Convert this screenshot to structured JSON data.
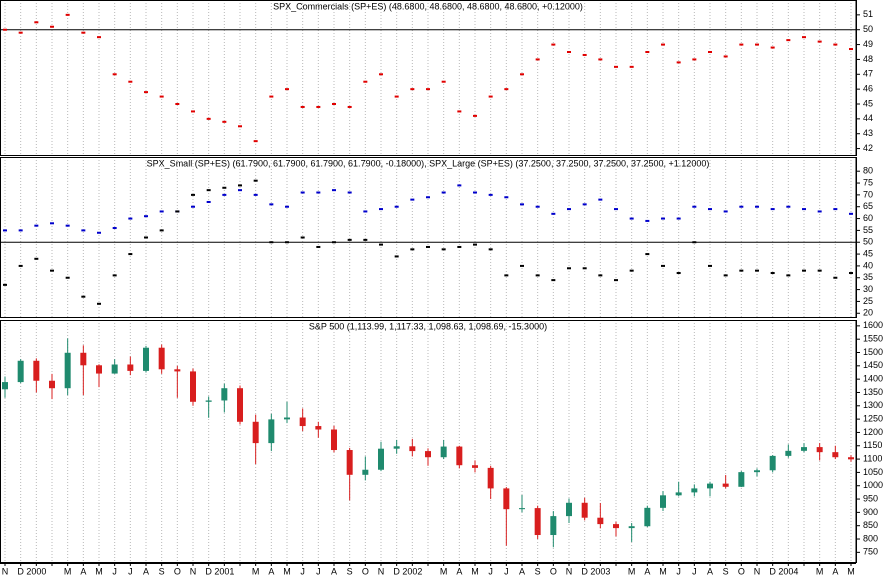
{
  "chart_data": [
    {
      "type": "dot",
      "title": "SPX_Commercials (SP+ES) (48.6800, 48.6800, 48.6800, 48.6800, +0.12000)",
      "color": "#e00000",
      "values": [
        50,
        49.8,
        50.5,
        50.2,
        51,
        49.8,
        49.5,
        47,
        46.5,
        45.8,
        45.5,
        45,
        44.5,
        44,
        43.8,
        43.5,
        42.5,
        45.5,
        46,
        44.8,
        44.8,
        45,
        44.8,
        46.5,
        47,
        45.5,
        46,
        46,
        46.5,
        44.5,
        44.2,
        45.5,
        46,
        47,
        48,
        49,
        48.5,
        48.3,
        48,
        47.5,
        47.5,
        48.5,
        49,
        47.8,
        48,
        48.5,
        48.2,
        49,
        49,
        48.8,
        49.3,
        49.5,
        49.2,
        49,
        48.7
      ],
      "hline": 50,
      "ylim": [
        41.5,
        52
      ],
      "yticks": [
        42,
        43,
        44,
        45,
        46,
        47,
        48,
        49,
        50,
        51
      ]
    },
    {
      "type": "dot",
      "title": "SPX_Small (SP+ES) (61.7900, 61.7900, 61.7900, 61.7900, -0.18000), SPX_Large (SP+ES) (37.2500, 37.2500, 37.2500, 37.2500, +1.12000)",
      "series": [
        {
          "color": "#0000cc",
          "values": [
            55,
            55,
            57,
            58,
            57,
            55,
            54,
            56,
            60,
            61,
            63,
            63,
            65,
            67,
            70,
            72,
            70,
            66,
            65,
            71,
            71,
            72,
            71,
            63,
            64,
            65,
            68,
            69,
            71,
            74,
            71,
            70,
            69,
            66,
            65,
            62,
            64,
            66,
            68,
            64,
            60,
            59,
            60,
            60,
            65,
            64,
            63,
            65,
            65,
            64,
            65,
            64,
            63,
            64,
            62
          ]
        },
        {
          "color": "#000000",
          "values": [
            32,
            40,
            43,
            38,
            35,
            27,
            24,
            36,
            45,
            52,
            55,
            63,
            70,
            72,
            73,
            74,
            76,
            50,
            50,
            52,
            48,
            50,
            51,
            51,
            49,
            44,
            47,
            48,
            47,
            48,
            49,
            47,
            36,
            40,
            36,
            34,
            39,
            39,
            36,
            34,
            38,
            45,
            40,
            37,
            50,
            40,
            36,
            38,
            38,
            37,
            36,
            38,
            38,
            35,
            37
          ]
        }
      ],
      "hline": 50,
      "ylim": [
        18,
        86
      ],
      "yticks": [
        20,
        25,
        30,
        35,
        40,
        45,
        50,
        55,
        60,
        65,
        70,
        75,
        80
      ]
    },
    {
      "type": "candlestick",
      "title": "S&P 500 (1,113.99, 1,117.33, 1,098.63, 1,098.69, -15.3000)",
      "categories": [
        "N",
        "D",
        "2000",
        null,
        "M",
        "A",
        "M",
        "J",
        "J",
        "A",
        "S",
        "O",
        "N",
        "D",
        "2001",
        null,
        "M",
        "A",
        "M",
        "J",
        "J",
        "A",
        "S",
        "O",
        "N",
        "D",
        "2002",
        null,
        "M",
        "A",
        "M",
        "J",
        "J",
        "A",
        "S",
        "O",
        "N",
        "D",
        "2003",
        null,
        "M",
        "A",
        "M",
        "J",
        "J",
        "A",
        "S",
        "O",
        "N",
        "D",
        "2004",
        null,
        "M",
        "A",
        "M"
      ],
      "open": [
        1362,
        1389,
        1469,
        1394,
        1366,
        1499,
        1452,
        1421,
        1455,
        1431,
        1518,
        1437,
        1429,
        1315,
        1320,
        1366,
        1240,
        1160,
        1249,
        1256,
        1224,
        1211,
        1134,
        1041,
        1060,
        1139,
        1148,
        1130,
        1107,
        1147,
        1077,
        1067,
        990,
        912,
        916,
        815,
        886,
        936,
        880,
        856,
        841,
        848,
        917,
        964,
        975,
        990,
        1008,
        996,
        1051,
        1058,
        1112,
        1131,
        1145,
        1126,
        1107
      ],
      "high": [
        1410,
        1475,
        1478,
        1420,
        1553,
        1527,
        1456,
        1475,
        1485,
        1525,
        1530,
        1450,
        1440,
        1335,
        1383,
        1376,
        1267,
        1270,
        1315,
        1290,
        1240,
        1225,
        1142,
        1110,
        1165,
        1172,
        1176,
        1140,
        1172,
        1150,
        1095,
        1075,
        995,
        965,
        925,
        905,
        952,
        955,
        935,
        865,
        860,
        925,
        980,
        1015,
        1005,
        1015,
        1040,
        1055,
        1065,
        1115,
        1155,
        1160,
        1160,
        1150,
        1115
      ],
      "low": [
        1330,
        1385,
        1350,
        1325,
        1340,
        1340,
        1370,
        1420,
        1415,
        1425,
        1420,
        1330,
        1300,
        1255,
        1275,
        1230,
        1081,
        1130,
        1235,
        1205,
        1180,
        1125,
        945,
        1020,
        1055,
        1120,
        1110,
        1075,
        1100,
        1065,
        1050,
        950,
        775,
        900,
        800,
        769,
        860,
        870,
        840,
        810,
        789,
        845,
        905,
        960,
        960,
        960,
        990,
        995,
        1035,
        1050,
        1105,
        1125,
        1095,
        1100,
        1090
      ],
      "close": [
        1389,
        1469,
        1394,
        1366,
        1499,
        1452,
        1421,
        1455,
        1431,
        1518,
        1437,
        1429,
        1315,
        1320,
        1366,
        1240,
        1160,
        1249,
        1256,
        1224,
        1211,
        1134,
        1041,
        1060,
        1139,
        1148,
        1130,
        1107,
        1147,
        1077,
        1067,
        990,
        912,
        916,
        815,
        886,
        936,
        880,
        856,
        841,
        848,
        917,
        964,
        975,
        990,
        1008,
        996,
        1051,
        1058,
        1112,
        1131,
        1145,
        1126,
        1107,
        1099
      ],
      "up_color": "#1f8a6e",
      "down_color": "#d81e1e",
      "ylim": [
        710,
        1622
      ],
      "yticks": [
        750,
        800,
        850,
        900,
        950,
        1000,
        1050,
        1100,
        1150,
        1200,
        1250,
        1300,
        1350,
        1400,
        1450,
        1500,
        1550,
        1600
      ],
      "grid": true
    }
  ]
}
